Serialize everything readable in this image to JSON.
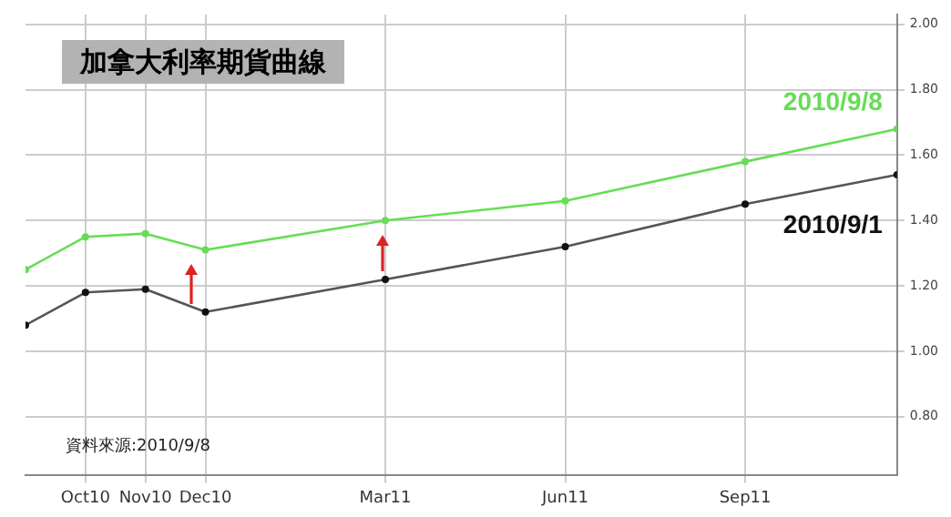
{
  "chart_data": {
    "type": "line",
    "title": "加拿大利率期貨曲線",
    "x": [
      "2010-09",
      "2010-10",
      "2010-11",
      "2010-12",
      "2011-03",
      "2011-06",
      "2011-09",
      "2011-11-17"
    ],
    "series": [
      {
        "name": "2010/9/8",
        "color": "#66dd55",
        "values": [
          1.25,
          1.35,
          1.36,
          1.31,
          1.4,
          1.46,
          1.58,
          1.68
        ]
      },
      {
        "name": "2010/9/1",
        "color": "#555555",
        "values": [
          1.08,
          1.18,
          1.19,
          1.12,
          1.22,
          1.32,
          1.45,
          1.54
        ]
      }
    ],
    "xlim": [
      "2010-09",
      "2011-11-17"
    ],
    "xticks": [
      {
        "value": "2010-10",
        "label": "Oct10"
      },
      {
        "value": "2010-11",
        "label": "Nov10"
      },
      {
        "value": "2010-12",
        "label": "Dec10"
      },
      {
        "value": "2011-03",
        "label": "Mar11"
      },
      {
        "value": "2011-06",
        "label": "Jun11"
      },
      {
        "value": "2011-09",
        "label": "Sep11"
      }
    ],
    "ylim": [
      0.62,
      2.03
    ],
    "yticks": [
      {
        "value": 0.8,
        "label": "0.80"
      },
      {
        "value": 1.0,
        "label": "1.00"
      },
      {
        "value": 1.2,
        "label": "1.20"
      },
      {
        "value": 1.4,
        "label": "1.40"
      },
      {
        "value": 1.6,
        "label": "1.60"
      },
      {
        "value": 1.8,
        "label": "1.80"
      },
      {
        "value": 2.0,
        "label": "2.00"
      }
    ],
    "annotations": [
      "資料來源:2010/9/8"
    ],
    "grid": true,
    "legend": false,
    "marker": "circle",
    "line_style": "solid"
  }
}
